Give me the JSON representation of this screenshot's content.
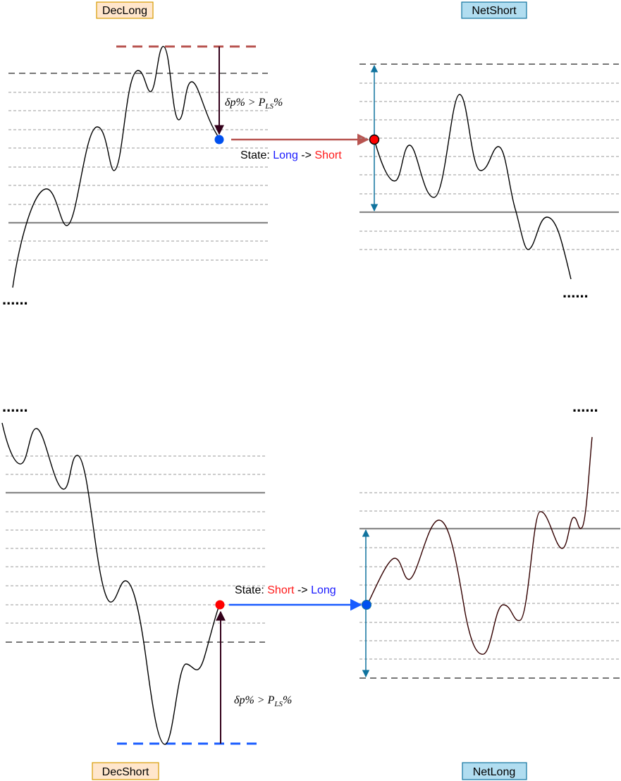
{
  "panels": {
    "dec_long": {
      "label": "DecLong",
      "condition": {
        "main": "δp% > P",
        "sub": "LS",
        "tail": "%"
      },
      "state": {
        "prefix": "State: ",
        "from": "Long",
        "arrow": " -> ",
        "to": "Short"
      },
      "ellipsis": "......"
    },
    "net_short": {
      "label": "NetShort",
      "ellipsis": "......"
    },
    "dec_short": {
      "label": "DecShort",
      "condition": {
        "main": "δp% > P",
        "sub": "LS",
        "tail": "%"
      },
      "state": {
        "prefix": "State: ",
        "from": "Short",
        "arrow": " -> ",
        "to": "Long"
      },
      "ellipsis": "......"
    },
    "net_long": {
      "label": "NetLong",
      "ellipsis": "......"
    }
  },
  "colors": {
    "long": "#1a1aff",
    "short": "#ff1a1a",
    "dec_long_box": "#ffe6cc",
    "dec_long_box_border": "#d79b00",
    "net_box": "#b1ddf0",
    "net_box_border": "#10739e",
    "red_dash": "#b85450",
    "blue_dash": "#1a5cff",
    "marker_blue": "#0050ef",
    "marker_red": "#ff0000",
    "transition_red": "#b85450",
    "transition_blue": "#1a5cff",
    "range_arrow": "#10739e",
    "drop_arrow": "#33001a"
  }
}
